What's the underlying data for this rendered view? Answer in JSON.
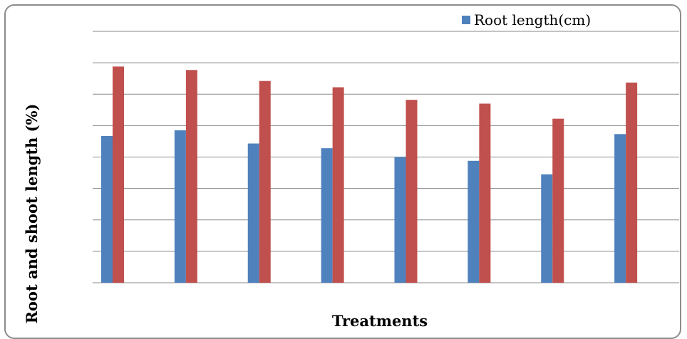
{
  "chart_data": {
    "type": "bar",
    "title": "",
    "xlabel": "Treatments",
    "ylabel": "Root and shoot length (%)",
    "categories": [
      "",
      "",
      "",
      "",
      "",
      "",
      "",
      ""
    ],
    "ylim": [
      0,
      8
    ],
    "grid": true,
    "legend": {
      "placement": "top-right",
      "entries": [
        "Root length(cm)"
      ]
    },
    "series": [
      {
        "name": "Root length(cm)",
        "color": "#4F81BD",
        "values": [
          4.67,
          4.85,
          4.43,
          4.28,
          4.0,
          3.88,
          3.45,
          4.73
        ]
      },
      {
        "name": "",
        "color": "#C0504D",
        "values": [
          6.88,
          6.77,
          6.42,
          6.22,
          5.82,
          5.7,
          5.22,
          6.37
        ]
      }
    ]
  }
}
